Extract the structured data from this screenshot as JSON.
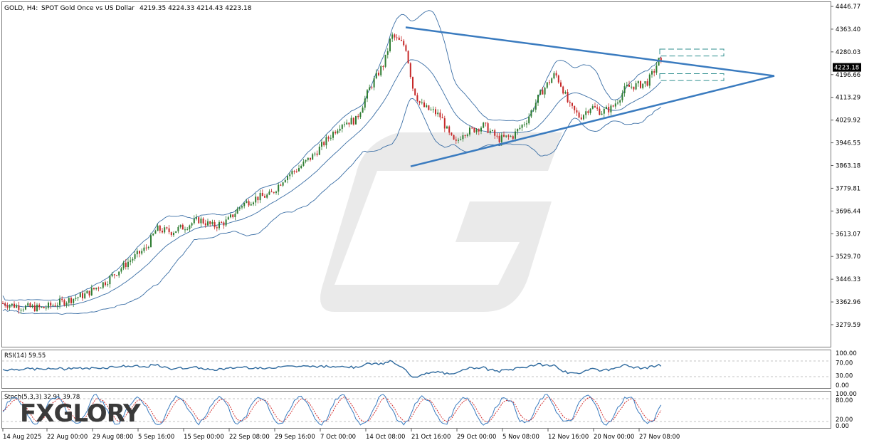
{
  "header": {
    "symbol": "GOLD, H4:",
    "description": "SPOT Gold Once vs US Dollar",
    "ohlc": "4219.35 4224.33 4214.43 4223.18"
  },
  "price_axis": {
    "labels": [
      "4446.77",
      "4363.40",
      "4280.03",
      "4196.66",
      "4113.29",
      "4029.92",
      "3946.55",
      "3863.18",
      "3779.81",
      "3696.44",
      "3613.07",
      "3529.70",
      "3446.33",
      "3362.96",
      "3279.59"
    ],
    "current_price": "4223.18"
  },
  "rsi_panel": {
    "title": "RSI(14) 59.55",
    "labels": [
      "100.00",
      "70.00",
      "30.00",
      "0.00"
    ]
  },
  "stoch_panel": {
    "title": "Stoch(5,3,3) 32.91 39.78",
    "labels": [
      "100.00",
      "80.00",
      "20.00",
      "0.00"
    ]
  },
  "time_axis": {
    "labels": [
      "14 Aug 2025",
      "22 Aug 00:00",
      "29 Aug 08:00",
      "5 Sep 16:00",
      "15 Sep 00:00",
      "22 Sep 08:00",
      "29 Sep 16:00",
      "7 Oct 00:00",
      "14 Oct 08:00",
      "21 Oct 16:00",
      "29 Oct 00:00",
      "5 Nov 08:00",
      "12 Nov 16:00",
      "20 Nov 00:00",
      "27 Nov 08:00"
    ]
  },
  "watermark": {
    "brand": "FXGLORY"
  },
  "colors": {
    "bull_candle": "#2e7d32",
    "bear_candle": "#c62828",
    "band": "#3a6ea5",
    "trendline": "#3a7bbf",
    "rsi_line": "#2f6a9e",
    "stoch_main": "#3a7bbf",
    "stoch_signal": "#d32f2f",
    "price_label_bg": "#000000"
  },
  "chart_data": {
    "type": "candlestick",
    "title": "GOLD, H4: SPOT Gold Once vs US Dollar",
    "last_close": 4223.18,
    "y_range": [
      3240,
      4470
    ],
    "price_path": [
      [
        0,
        3360
      ],
      [
        30,
        3345
      ],
      [
        60,
        3340
      ],
      [
        90,
        3365
      ],
      [
        120,
        3390
      ],
      [
        150,
        3440
      ],
      [
        180,
        3510
      ],
      [
        205,
        3560
      ],
      [
        220,
        3630
      ],
      [
        240,
        3620
      ],
      [
        260,
        3640
      ],
      [
        280,
        3665
      ],
      [
        300,
        3640
      ],
      [
        320,
        3660
      ],
      [
        340,
        3720
      ],
      [
        360,
        3745
      ],
      [
        380,
        3755
      ],
      [
        400,
        3820
      ],
      [
        420,
        3855
      ],
      [
        440,
        3900
      ],
      [
        460,
        3960
      ],
      [
        480,
        4020
      ],
      [
        500,
        4030
      ],
      [
        520,
        4150
      ],
      [
        540,
        4240
      ],
      [
        550,
        4340
      ],
      [
        560,
        4320
      ],
      [
        570,
        4300
      ],
      [
        580,
        4150
      ],
      [
        590,
        4090
      ],
      [
        600,
        4070
      ],
      [
        610,
        4060
      ],
      [
        620,
        4040
      ],
      [
        630,
        3980
      ],
      [
        640,
        3940
      ],
      [
        650,
        3985
      ],
      [
        660,
        3990
      ],
      [
        680,
        4010
      ],
      [
        700,
        3960
      ],
      [
        720,
        3970
      ],
      [
        740,
        4030
      ],
      [
        760,
        4130
      ],
      [
        780,
        4200
      ],
      [
        790,
        4150
      ],
      [
        800,
        4080
      ],
      [
        815,
        4040
      ],
      [
        830,
        4080
      ],
      [
        845,
        4060
      ],
      [
        860,
        4075
      ],
      [
        880,
        4150
      ],
      [
        900,
        4160
      ],
      [
        910,
        4170
      ],
      [
        920,
        4215
      ],
      [
        925,
        4250
      ],
      [
        932,
        4223
      ]
    ],
    "triangle": {
      "upper": [
        [
          570,
          4370
        ],
        [
          1088,
          4192
        ]
      ],
      "lower": [
        [
          577,
          3860
        ],
        [
          1088,
          4192
        ]
      ]
    },
    "breakout_boxes": [
      {
        "price_top": 4290,
        "price_bottom": 4265
      },
      {
        "price_top": 4200,
        "price_bottom": 4175
      }
    ],
    "rsi": {
      "levels": [
        70,
        30
      ],
      "last": 59.55
    },
    "stochastic": {
      "k": 32.91,
      "d": 39.78,
      "levels": [
        80,
        20
      ]
    }
  }
}
